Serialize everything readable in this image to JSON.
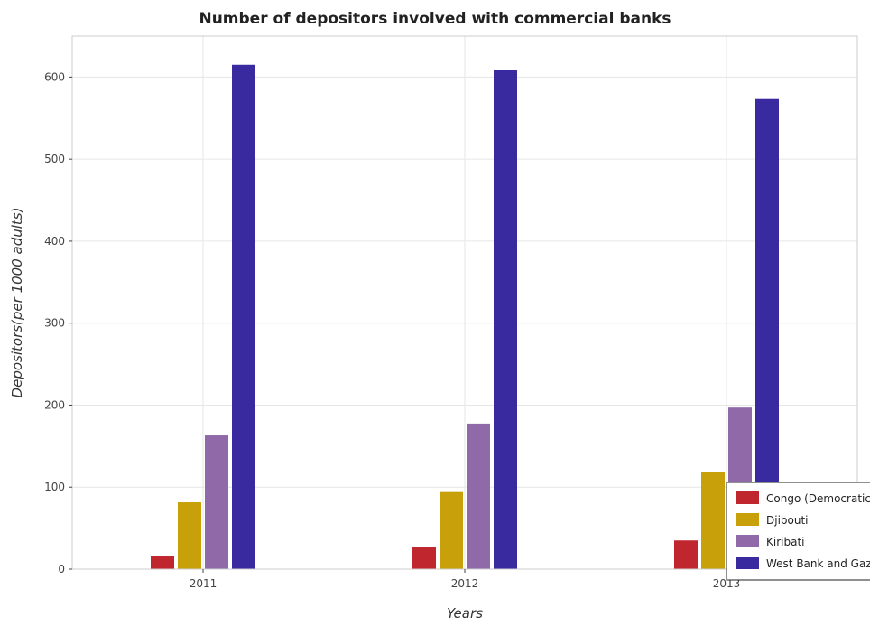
{
  "chart_data": {
    "type": "bar",
    "title": "Number of depositors involved with commercial banks",
    "xlabel": "Years",
    "ylabel": "Depositors(per 1000 adults)",
    "categories": [
      "2011",
      "2012",
      "2013"
    ],
    "ylim": [
      0,
      650
    ],
    "yticks": [
      0,
      100,
      200,
      300,
      400,
      500,
      600
    ],
    "grid": true,
    "legend_position": "bottom-right",
    "series": [
      {
        "name": "Congo (Democratic)",
        "color": "#c0262d",
        "values": [
          16.5,
          27.5,
          35.0
        ]
      },
      {
        "name": "Djibouti",
        "color": "#c8a00a",
        "values": [
          81.5,
          94.0,
          118.3
        ]
      },
      {
        "name": "Kiribati",
        "color": "#9069a8",
        "values": [
          163.0,
          177.5,
          197.0
        ]
      },
      {
        "name": "West Bank and Gaza",
        "color": "#3a2aa0",
        "values": [
          615.0,
          608.8,
          573.2
        ]
      }
    ]
  }
}
